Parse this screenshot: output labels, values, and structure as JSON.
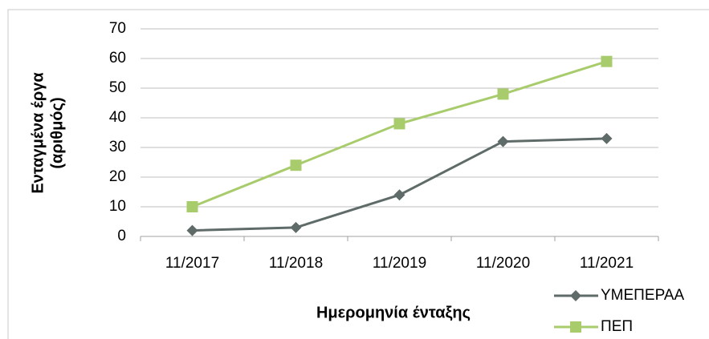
{
  "chart_data": {
    "type": "line",
    "y_label": [
      "Ενταγμένα έργα",
      "(αριθμός)"
    ],
    "x_label": "Ημερομηνία ένταξης",
    "categories": [
      "11/2017",
      "11/2018",
      "11/2019",
      "11/2020",
      "11/2021"
    ],
    "series": [
      {
        "name": "ΥΜΕΠΕΡΑΑ",
        "color": "#5f6b68",
        "marker": "diamond",
        "values": [
          2,
          3,
          14,
          32,
          33
        ]
      },
      {
        "name": "ΠΕΠ",
        "color": "#a8cc6c",
        "marker": "square",
        "values": [
          10,
          24,
          38,
          48,
          59
        ]
      }
    ],
    "ylim": [
      0,
      70
    ],
    "yticks": [
      0,
      10,
      20,
      30,
      40,
      50,
      60,
      70
    ],
    "grid": true,
    "legend": "bottom-right"
  }
}
